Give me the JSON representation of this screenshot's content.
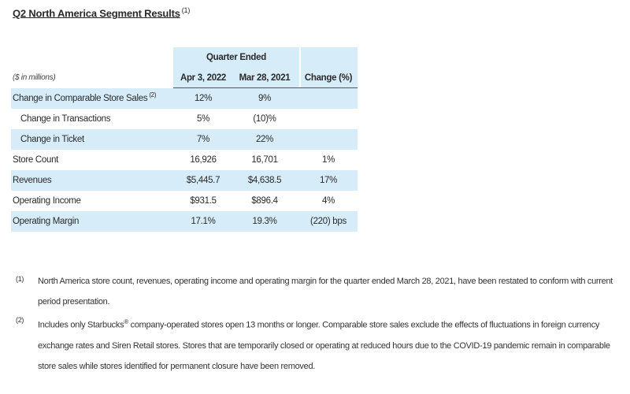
{
  "title": "Q2 North America Segment Results",
  "title_note": "(1)",
  "table": {
    "group_header": "Quarter Ended",
    "units": "($ in millions)",
    "col1": "Apr 3, 2022",
    "col2": "Mar 28, 2021",
    "col3": "Change (%)",
    "rows": [
      {
        "label": "Change in Comparable Store Sales",
        "note": "(2)",
        "v1": "12%",
        "v2": "9%",
        "v3": ""
      },
      {
        "label": "Change in Transactions",
        "note": "",
        "v1": "5%",
        "v2": "(10)%",
        "v3": ""
      },
      {
        "label": "Change in Ticket",
        "note": "",
        "v1": "7%",
        "v2": "22%",
        "v3": ""
      },
      {
        "label": "Store Count",
        "note": "",
        "v1": "16,926",
        "v2": "16,701",
        "v3": "1%"
      },
      {
        "label": "Revenues",
        "note": "",
        "v1": "$5,445.7",
        "v2": "$4,638.5",
        "v3": "17%"
      },
      {
        "label": "Operating Income",
        "note": "",
        "v1": "$931.5",
        "v2": "$896.4",
        "v3": "4%"
      },
      {
        "label": "Operating Margin",
        "note": "",
        "v1": "17.1%",
        "v2": "19.3%",
        "v3": "(220) bps"
      }
    ]
  },
  "footnotes": [
    {
      "marker": "(1)",
      "text": "North America store count, revenues, operating income and operating margin for the quarter ended March 28, 2021, have been restated to conform with current period presentation."
    },
    {
      "marker": "(2)",
      "text_before": "Includes only Starbucks",
      "reg": "®",
      "text_after": " company-operated stores open 13 months or longer. Comparable store sales exclude the effects of fluctuations in foreign currency exchange rates and Siren Retail stores. Stores that are temporarily closed or operating at reduced hours due to the COVID-19 pandemic remain in comparable store sales while stores identified for permanent closure have been removed."
    }
  ]
}
